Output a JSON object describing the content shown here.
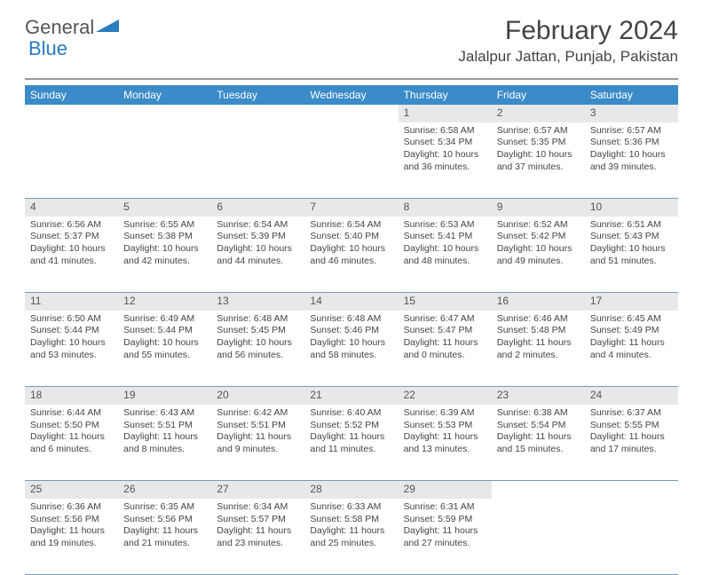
{
  "logo": {
    "general": "General",
    "blue": "Blue"
  },
  "title": "February 2024",
  "location": "Jalalpur Jattan, Punjab, Pakistan",
  "colors": {
    "header_bg": "#3b8bc8",
    "header_text": "#ffffff",
    "daynum_bg": "#e8e8e8",
    "divider": "#7b99b8",
    "logo_blue": "#2a7bbf"
  },
  "day_headers": [
    "Sunday",
    "Monday",
    "Tuesday",
    "Wednesday",
    "Thursday",
    "Friday",
    "Saturday"
  ],
  "weeks": [
    [
      {
        "num": "",
        "sunrise": "",
        "sunset": "",
        "daylight": ""
      },
      {
        "num": "",
        "sunrise": "",
        "sunset": "",
        "daylight": ""
      },
      {
        "num": "",
        "sunrise": "",
        "sunset": "",
        "daylight": ""
      },
      {
        "num": "",
        "sunrise": "",
        "sunset": "",
        "daylight": ""
      },
      {
        "num": "1",
        "sunrise": "Sunrise: 6:58 AM",
        "sunset": "Sunset: 5:34 PM",
        "daylight": "Daylight: 10 hours and 36 minutes."
      },
      {
        "num": "2",
        "sunrise": "Sunrise: 6:57 AM",
        "sunset": "Sunset: 5:35 PM",
        "daylight": "Daylight: 10 hours and 37 minutes."
      },
      {
        "num": "3",
        "sunrise": "Sunrise: 6:57 AM",
        "sunset": "Sunset: 5:36 PM",
        "daylight": "Daylight: 10 hours and 39 minutes."
      }
    ],
    [
      {
        "num": "4",
        "sunrise": "Sunrise: 6:56 AM",
        "sunset": "Sunset: 5:37 PM",
        "daylight": "Daylight: 10 hours and 41 minutes."
      },
      {
        "num": "5",
        "sunrise": "Sunrise: 6:55 AM",
        "sunset": "Sunset: 5:38 PM",
        "daylight": "Daylight: 10 hours and 42 minutes."
      },
      {
        "num": "6",
        "sunrise": "Sunrise: 6:54 AM",
        "sunset": "Sunset: 5:39 PM",
        "daylight": "Daylight: 10 hours and 44 minutes."
      },
      {
        "num": "7",
        "sunrise": "Sunrise: 6:54 AM",
        "sunset": "Sunset: 5:40 PM",
        "daylight": "Daylight: 10 hours and 46 minutes."
      },
      {
        "num": "8",
        "sunrise": "Sunrise: 6:53 AM",
        "sunset": "Sunset: 5:41 PM",
        "daylight": "Daylight: 10 hours and 48 minutes."
      },
      {
        "num": "9",
        "sunrise": "Sunrise: 6:52 AM",
        "sunset": "Sunset: 5:42 PM",
        "daylight": "Daylight: 10 hours and 49 minutes."
      },
      {
        "num": "10",
        "sunrise": "Sunrise: 6:51 AM",
        "sunset": "Sunset: 5:43 PM",
        "daylight": "Daylight: 10 hours and 51 minutes."
      }
    ],
    [
      {
        "num": "11",
        "sunrise": "Sunrise: 6:50 AM",
        "sunset": "Sunset: 5:44 PM",
        "daylight": "Daylight: 10 hours and 53 minutes."
      },
      {
        "num": "12",
        "sunrise": "Sunrise: 6:49 AM",
        "sunset": "Sunset: 5:44 PM",
        "daylight": "Daylight: 10 hours and 55 minutes."
      },
      {
        "num": "13",
        "sunrise": "Sunrise: 6:48 AM",
        "sunset": "Sunset: 5:45 PM",
        "daylight": "Daylight: 10 hours and 56 minutes."
      },
      {
        "num": "14",
        "sunrise": "Sunrise: 6:48 AM",
        "sunset": "Sunset: 5:46 PM",
        "daylight": "Daylight: 10 hours and 58 minutes."
      },
      {
        "num": "15",
        "sunrise": "Sunrise: 6:47 AM",
        "sunset": "Sunset: 5:47 PM",
        "daylight": "Daylight: 11 hours and 0 minutes."
      },
      {
        "num": "16",
        "sunrise": "Sunrise: 6:46 AM",
        "sunset": "Sunset: 5:48 PM",
        "daylight": "Daylight: 11 hours and 2 minutes."
      },
      {
        "num": "17",
        "sunrise": "Sunrise: 6:45 AM",
        "sunset": "Sunset: 5:49 PM",
        "daylight": "Daylight: 11 hours and 4 minutes."
      }
    ],
    [
      {
        "num": "18",
        "sunrise": "Sunrise: 6:44 AM",
        "sunset": "Sunset: 5:50 PM",
        "daylight": "Daylight: 11 hours and 6 minutes."
      },
      {
        "num": "19",
        "sunrise": "Sunrise: 6:43 AM",
        "sunset": "Sunset: 5:51 PM",
        "daylight": "Daylight: 11 hours and 8 minutes."
      },
      {
        "num": "20",
        "sunrise": "Sunrise: 6:42 AM",
        "sunset": "Sunset: 5:51 PM",
        "daylight": "Daylight: 11 hours and 9 minutes."
      },
      {
        "num": "21",
        "sunrise": "Sunrise: 6:40 AM",
        "sunset": "Sunset: 5:52 PM",
        "daylight": "Daylight: 11 hours and 11 minutes."
      },
      {
        "num": "22",
        "sunrise": "Sunrise: 6:39 AM",
        "sunset": "Sunset: 5:53 PM",
        "daylight": "Daylight: 11 hours and 13 minutes."
      },
      {
        "num": "23",
        "sunrise": "Sunrise: 6:38 AM",
        "sunset": "Sunset: 5:54 PM",
        "daylight": "Daylight: 11 hours and 15 minutes."
      },
      {
        "num": "24",
        "sunrise": "Sunrise: 6:37 AM",
        "sunset": "Sunset: 5:55 PM",
        "daylight": "Daylight: 11 hours and 17 minutes."
      }
    ],
    [
      {
        "num": "25",
        "sunrise": "Sunrise: 6:36 AM",
        "sunset": "Sunset: 5:56 PM",
        "daylight": "Daylight: 11 hours and 19 minutes."
      },
      {
        "num": "26",
        "sunrise": "Sunrise: 6:35 AM",
        "sunset": "Sunset: 5:56 PM",
        "daylight": "Daylight: 11 hours and 21 minutes."
      },
      {
        "num": "27",
        "sunrise": "Sunrise: 6:34 AM",
        "sunset": "Sunset: 5:57 PM",
        "daylight": "Daylight: 11 hours and 23 minutes."
      },
      {
        "num": "28",
        "sunrise": "Sunrise: 6:33 AM",
        "sunset": "Sunset: 5:58 PM",
        "daylight": "Daylight: 11 hours and 25 minutes."
      },
      {
        "num": "29",
        "sunrise": "Sunrise: 6:31 AM",
        "sunset": "Sunset: 5:59 PM",
        "daylight": "Daylight: 11 hours and 27 minutes."
      },
      {
        "num": "",
        "sunrise": "",
        "sunset": "",
        "daylight": ""
      },
      {
        "num": "",
        "sunrise": "",
        "sunset": "",
        "daylight": ""
      }
    ]
  ]
}
